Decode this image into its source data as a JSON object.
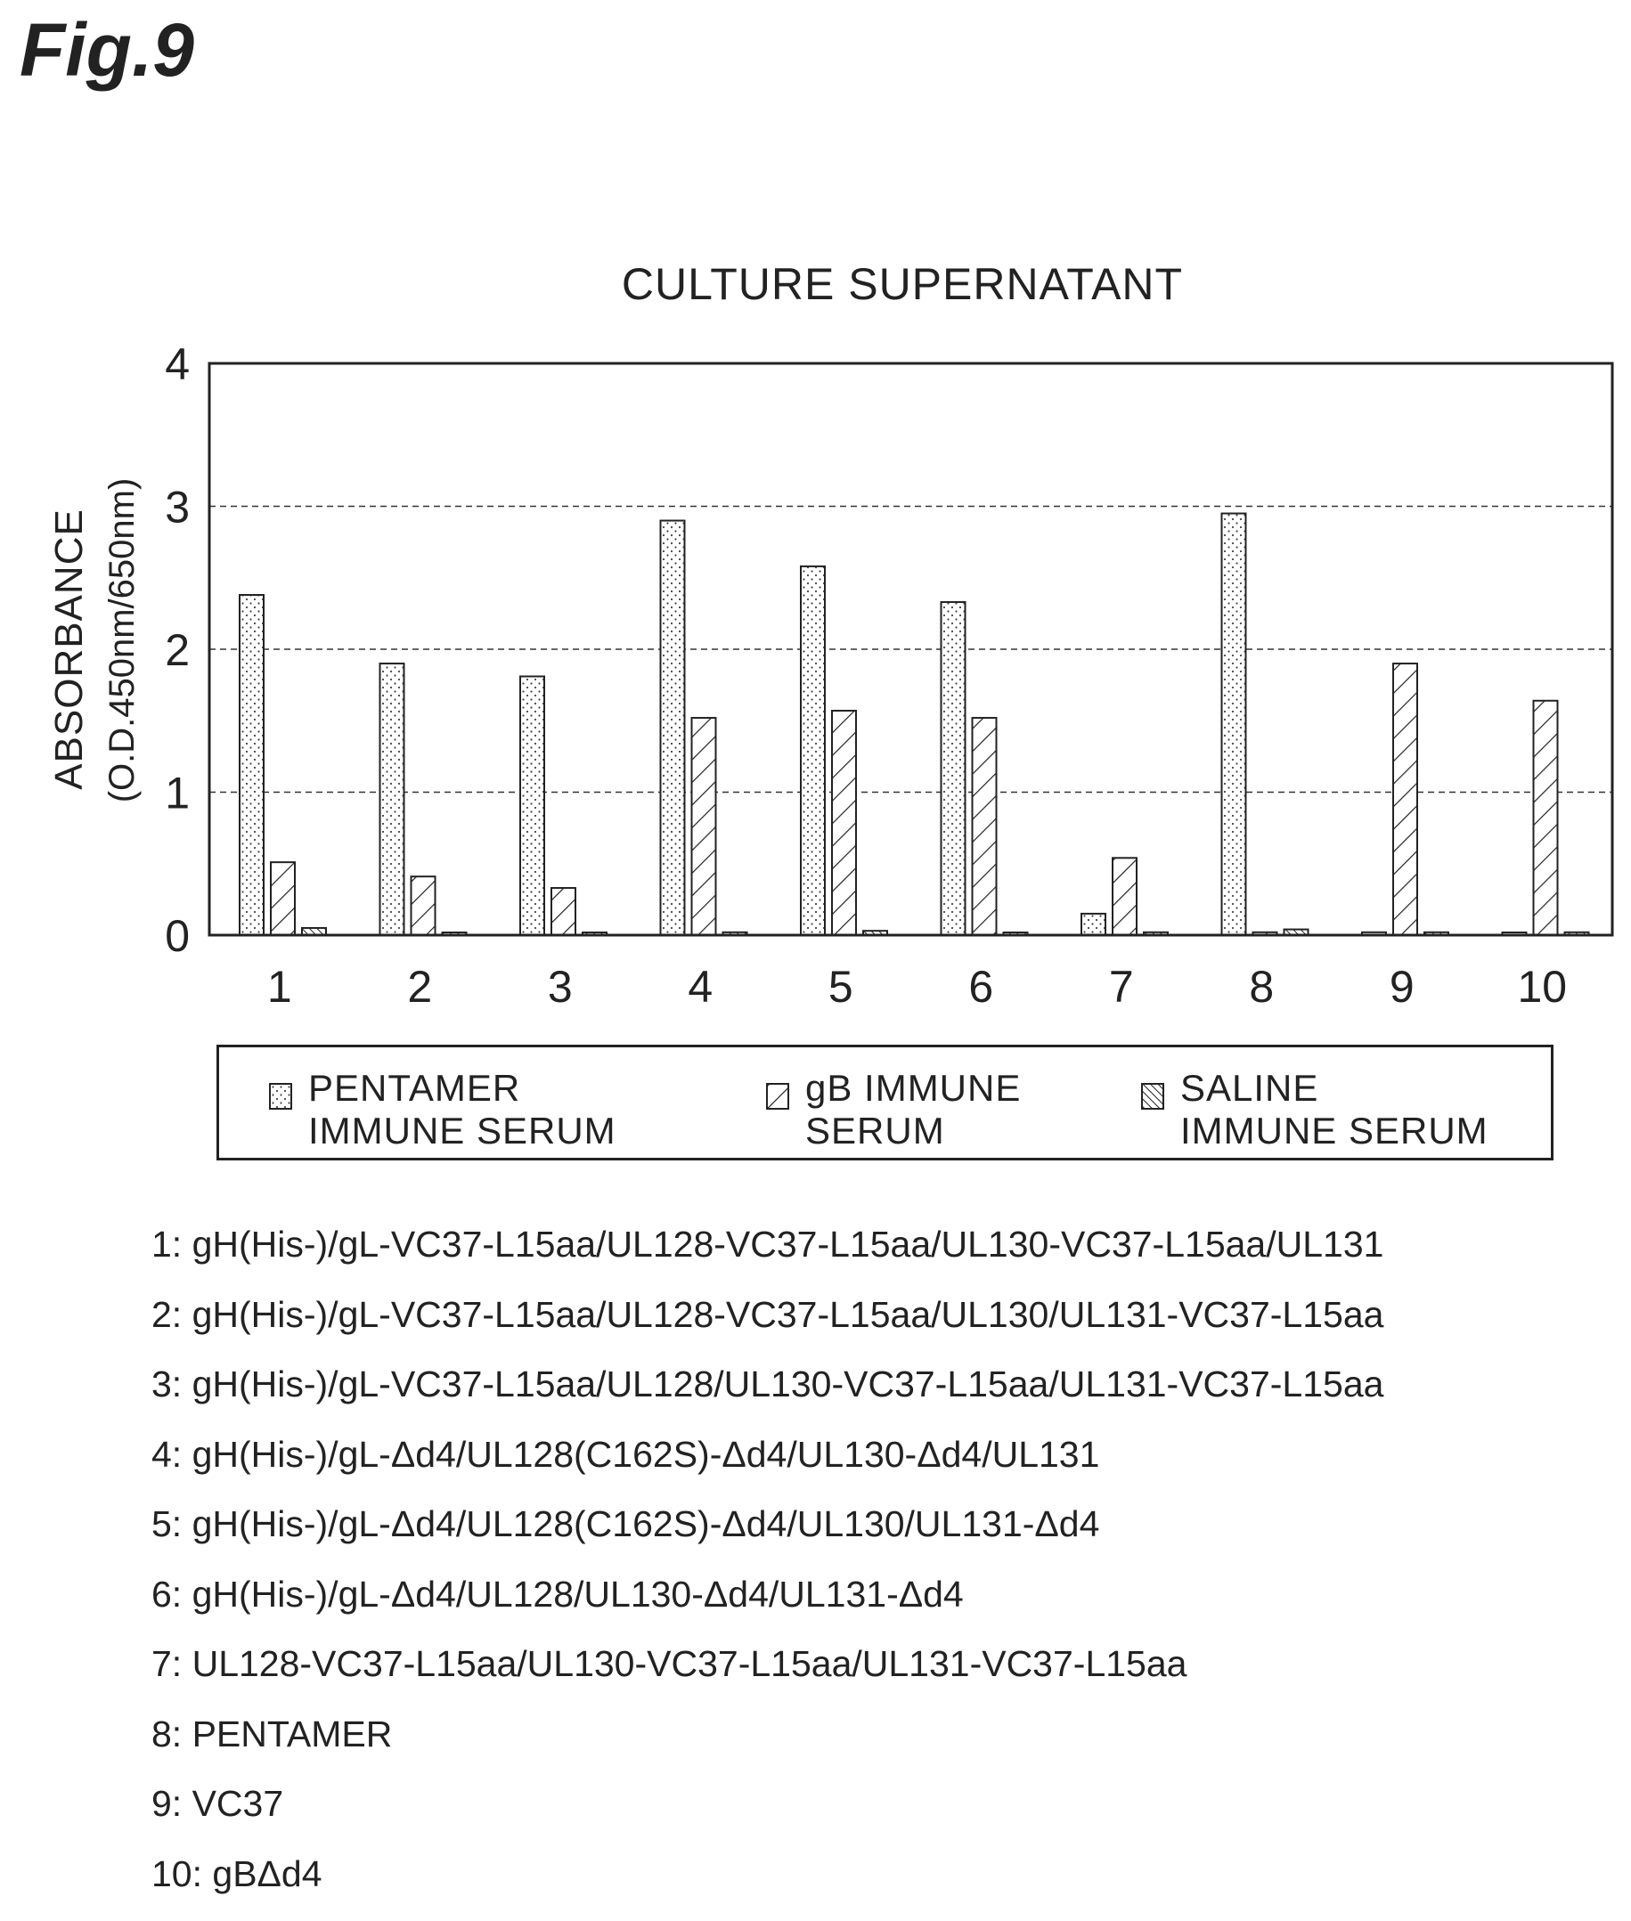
{
  "figure_label": "Fig.9",
  "legend": {
    "items": [
      {
        "label": "PENTAMER\nIMMUNE SERUM",
        "pattern": "dots"
      },
      {
        "label": "gB IMMUNE\nSERUM",
        "pattern": "diagonal"
      },
      {
        "label": "SALINE\nIMMUNE SERUM",
        "pattern": "dense-diagonal"
      }
    ]
  },
  "notes": [
    "1: gH(His-)/gL-VC37-L15aa/UL128-VC37-L15aa/UL130-VC37-L15aa/UL131",
    "2: gH(His-)/gL-VC37-L15aa/UL128-VC37-L15aa/UL130/UL131-VC37-L15aa",
    "3: gH(His-)/gL-VC37-L15aa/UL128/UL130-VC37-L15aa/UL131-VC37-L15aa",
    "4: gH(His-)/gL-Δd4/UL128(C162S)-Δd4/UL130-Δd4/UL131",
    "5: gH(His-)/gL-Δd4/UL128(C162S)-Δd4/UL130/UL131-Δd4",
    "6: gH(His-)/gL-Δd4/UL128/UL130-Δd4/UL131-Δd4",
    "7: UL128-VC37-L15aa/UL130-VC37-L15aa/UL131-VC37-L15aa",
    "8: PENTAMER",
    "9: VC37",
    "10: gBΔd4"
  ],
  "chart_data": {
    "type": "bar",
    "title": "CULTURE SUPERNATANT",
    "xlabel": "",
    "ylabel": "ABSORBANCE",
    "ylabel_sub": "(O.D.450nm/650nm)",
    "categories": [
      "1",
      "2",
      "3",
      "4",
      "5",
      "6",
      "7",
      "8",
      "9",
      "10"
    ],
    "ylim": [
      0,
      4
    ],
    "yticks": [
      "0",
      "1",
      "2",
      "3",
      "4"
    ],
    "grid": "horizontal-dashed",
    "legend_position": "bottom",
    "series": [
      {
        "name": "PENTAMER IMMUNE SERUM",
        "pattern": "dots",
        "values": [
          2.38,
          1.9,
          1.81,
          2.9,
          2.58,
          2.33,
          0.15,
          2.95,
          0.02,
          0.01
        ]
      },
      {
        "name": "gB IMMUNE SERUM",
        "pattern": "diagonal",
        "values": [
          0.51,
          0.41,
          0.33,
          1.52,
          1.57,
          1.52,
          0.54,
          0.02,
          1.9,
          1.64
        ]
      },
      {
        "name": "SALINE IMMUNE SERUM",
        "pattern": "dense-diagonal",
        "values": [
          0.05,
          0.01,
          0.01,
          0.02,
          0.03,
          0.01,
          0.02,
          0.04,
          0.02,
          0.02
        ]
      }
    ]
  }
}
